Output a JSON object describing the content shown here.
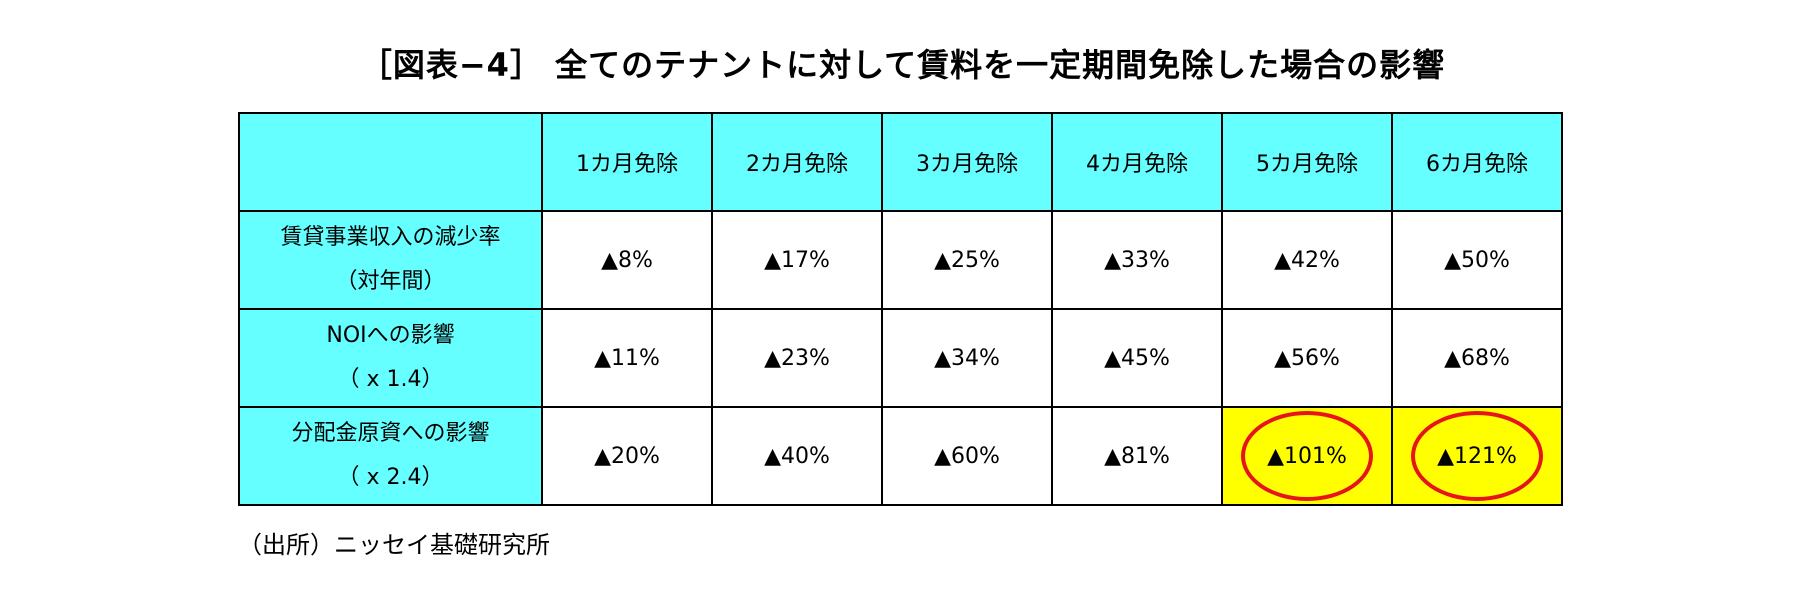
{
  "title": "［図表−4］ 全てのテナントに対して賃料を一定期間免除した場合の影響",
  "table": {
    "columns": [
      "1カ月免除",
      "2カ月免除",
      "3カ月免除",
      "4カ月免除",
      "5カ月免除",
      "6カ月免除"
    ],
    "rows": [
      {
        "label_line1": "賃貸事業収入の減少率",
        "label_line2": "（対年間）",
        "values": [
          "▲8%",
          "▲17%",
          "▲25%",
          "▲33%",
          "▲42%",
          "▲50%"
        ]
      },
      {
        "label_line1": "NOIへの影響",
        "label_line2": "（ x 1.4）",
        "values": [
          "▲11%",
          "▲23%",
          "▲34%",
          "▲45%",
          "▲56%",
          "▲68%"
        ]
      },
      {
        "label_line1": "分配金原資への影響",
        "label_line2": "（ x 2.4）",
        "values": [
          "▲20%",
          "▲40%",
          "▲60%",
          "▲81%",
          "▲101%",
          "▲121%"
        ]
      }
    ],
    "highlighted_cells": [
      "▲101%",
      "▲121%"
    ]
  },
  "colors": {
    "header_cyan": "#66ffff",
    "highlight_yellow": "#ffff00",
    "circle_red": "#e8141c"
  },
  "source": "（出所）ニッセイ基礎研究所"
}
